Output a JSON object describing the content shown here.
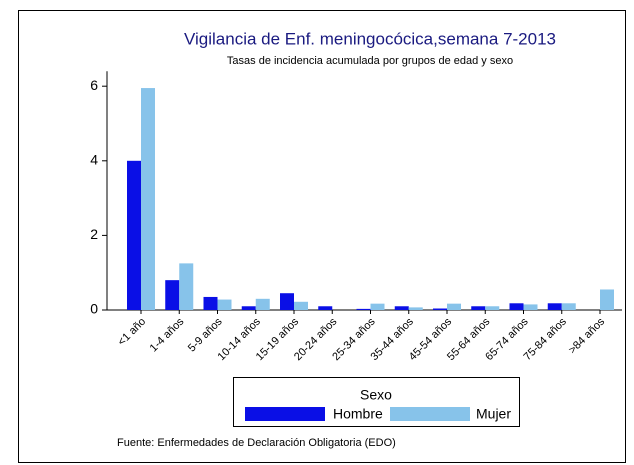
{
  "chart_data": {
    "type": "bar",
    "title": "Vigilancia de Enf. meningocócica,semana 7-2013",
    "subtitle": "Tasas de incidencia acumulada por grupos de edad y sexo",
    "categories": [
      "<1 año",
      "1-4 años",
      "5-9 años",
      "10-14 años",
      "15-19 años",
      "20-24 años",
      "25-34 años",
      "35-44 años",
      "45-54 años",
      "55-64 años",
      "65-74 años",
      "75-84 años",
      ">84 años"
    ],
    "series": [
      {
        "name": "Hombre",
        "color": "#0a0fe6",
        "values": [
          4.0,
          0.8,
          0.35,
          0.1,
          0.45,
          0.1,
          0.03,
          0.1,
          0.04,
          0.1,
          0.18,
          0.18,
          0
        ]
      },
      {
        "name": "Mujer",
        "color": "#87c3ea",
        "values": [
          5.95,
          1.25,
          0.28,
          0.3,
          0.22,
          0,
          0.17,
          0.07,
          0.17,
          0.1,
          0.15,
          0.18,
          0.55
        ]
      }
    ],
    "ylim": [
      0,
      6.4
    ],
    "yticks": [
      0,
      2,
      4,
      6
    ],
    "legend_title": "Sexo",
    "note": "Fuente: Enfermedades de Declaración Obligatoria (EDO)"
  }
}
